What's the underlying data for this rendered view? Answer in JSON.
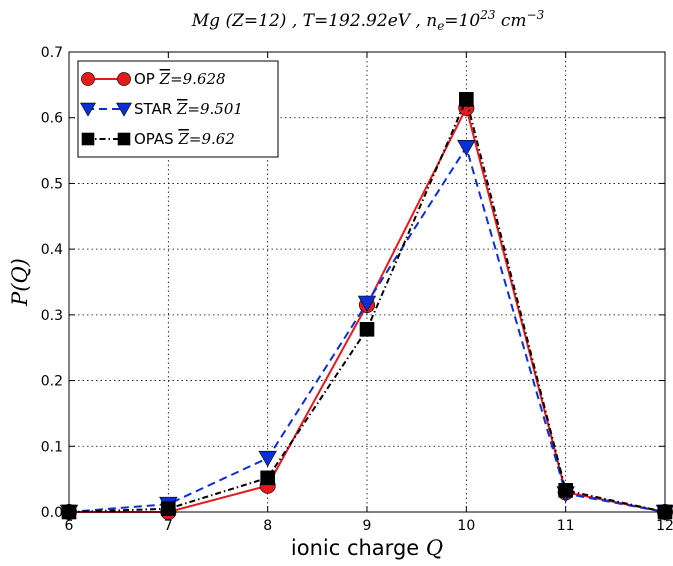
{
  "chart_data": {
    "type": "line",
    "title": "Mg (Z=12) , T=192.92eV , n_e=10^23 cm^-3",
    "title_parts": {
      "prefix": "Mg (Z=12) , T=192.92eV , n",
      "sub": "e",
      "mid": "=10",
      "sup1": "23",
      "unit": " cm",
      "sup2": "−3"
    },
    "xlabel": "ionic charge Q",
    "xlabel_parts": {
      "text": "ionic charge ",
      "var": "Q"
    },
    "ylabel": "P(Q)",
    "xlim": [
      6,
      12
    ],
    "ylim": [
      0,
      0.7
    ],
    "xticks": [
      "6",
      "7",
      "8",
      "9",
      "10",
      "11",
      "12"
    ],
    "yticks": [
      "0.0",
      "0.1",
      "0.2",
      "0.3",
      "0.4",
      "0.5",
      "0.6",
      "0.7"
    ],
    "grid": true,
    "legend_position": "top-left",
    "series": [
      {
        "name": "OP Z̅=9.628",
        "legend_prefix": "OP",
        "legend_value": "=9.628",
        "color": "#e41a1c",
        "line_style": "solid",
        "marker": "circle",
        "x": [
          6,
          7,
          8,
          9,
          10,
          11,
          12
        ],
        "values": [
          0.0,
          0.0,
          0.04,
          0.315,
          0.615,
          0.03,
          0.0
        ]
      },
      {
        "name": "STAR Z̅=9.501",
        "legend_prefix": "STAR",
        "legend_value": "=9.501",
        "color": "#0b2fd6",
        "line_style": "dashed",
        "marker": "triangle-down",
        "x": [
          6,
          7,
          8,
          9,
          10,
          11,
          12
        ],
        "values": [
          0.0,
          0.012,
          0.082,
          0.318,
          0.555,
          0.028,
          0.0
        ]
      },
      {
        "name": "OPAS Z̅=9.62",
        "legend_prefix": "OPAS",
        "legend_value": "=9.62",
        "color": "#000000",
        "line_style": "dashdot",
        "marker": "square",
        "x": [
          6,
          7,
          8,
          9,
          10,
          11,
          12
        ],
        "values": [
          0.0,
          0.005,
          0.052,
          0.278,
          0.628,
          0.033,
          0.0
        ]
      }
    ]
  }
}
